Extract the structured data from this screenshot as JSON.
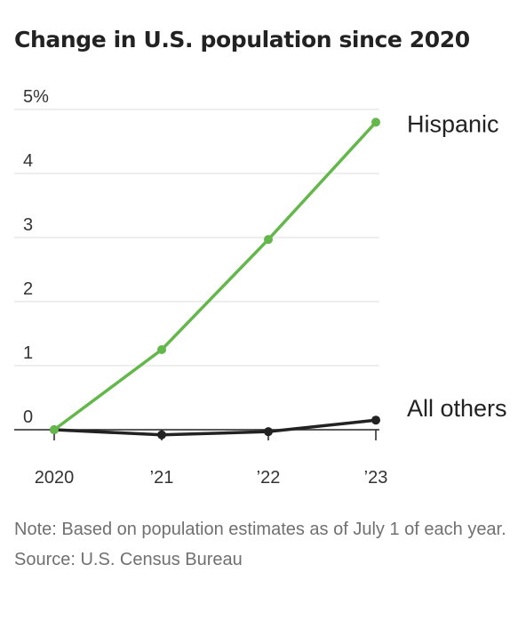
{
  "header": {
    "title": "Change in U.S. population since 2020"
  },
  "chart_data": {
    "type": "line",
    "title": "Change in U.S. population since 2020",
    "x": [
      "2020",
      "’21",
      "’22",
      "’23"
    ],
    "y_ticks": [
      "0",
      "1",
      "2",
      "3",
      "4",
      "5%"
    ],
    "ylim": [
      0,
      5
    ],
    "grid": true,
    "legend": "direct labels at line ends (right)",
    "series": [
      {
        "name": "Hispanic",
        "values": [
          0,
          1.25,
          2.97,
          4.8
        ],
        "color": "#63b74b"
      },
      {
        "name": "All others",
        "values": [
          0,
          -0.08,
          -0.03,
          0.15
        ],
        "color": "#222222"
      }
    ]
  },
  "footer": {
    "note": "Note: Based on population estimates as of July 1 of each year.",
    "source": "Source: U.S. Census Bureau"
  }
}
